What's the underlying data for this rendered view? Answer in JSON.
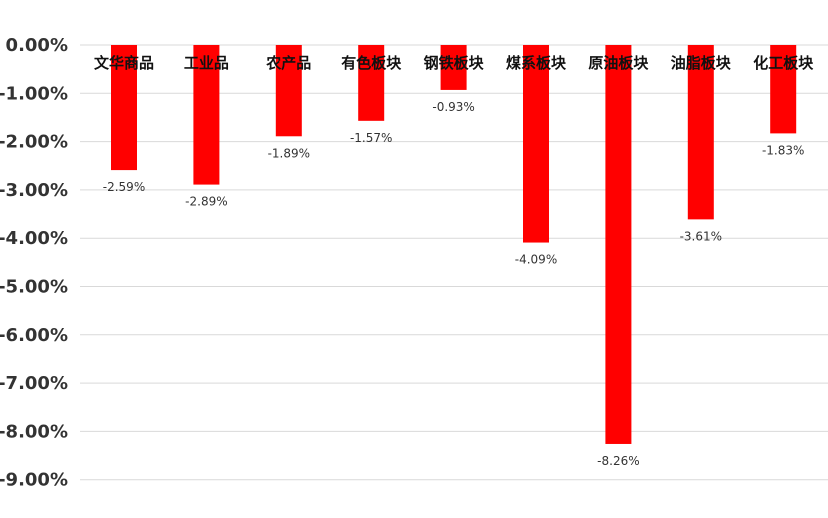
{
  "chart_data": {
    "type": "bar",
    "categories": [
      "文华商品",
      "工业品",
      "农产品",
      "有色板块",
      "钢铁板块",
      "煤系板块",
      "原油板块",
      "油脂板块",
      "化工板块"
    ],
    "values": [
      -2.59,
      -2.89,
      -1.89,
      -1.57,
      -0.93,
      -4.09,
      -8.26,
      -3.61,
      -1.83
    ],
    "value_labels": [
      "-2.59%",
      "-2.89%",
      "-1.89%",
      "-1.57%",
      "-0.93%",
      "-4.09%",
      "-8.26%",
      "-3.61%",
      "-1.83%"
    ],
    "y_ticks": [
      "0.00%",
      "-1.00%",
      "-2.00%",
      "-3.00%",
      "-4.00%",
      "-5.00%",
      "-6.00%",
      "-7.00%",
      "-8.00%",
      "-9.00%"
    ],
    "ylim": [
      -9,
      0
    ],
    "unit": "%",
    "bar_color": "#ff0000",
    "grid": true,
    "legend": "none"
  }
}
